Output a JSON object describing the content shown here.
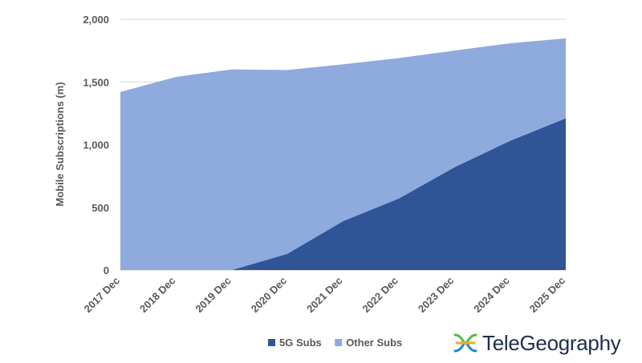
{
  "chart_data": {
    "type": "area",
    "stacked": true,
    "categories": [
      "2017 Dec",
      "2018 Dec",
      "2019 Dec",
      "2020 Dec",
      "2021 Dec",
      "2022 Dec",
      "2023 Dec",
      "2024 Dec",
      "2025 Dec"
    ],
    "series": [
      {
        "name": "5G Subs",
        "color": "#2f5597",
        "values": [
          0,
          0,
          0,
          130,
          390,
          570,
          820,
          1030,
          1210
        ]
      },
      {
        "name": "Other Subs",
        "color": "#8faadc",
        "values": [
          1420,
          1540,
          1600,
          1465,
          1250,
          1120,
          930,
          778,
          637
        ]
      }
    ],
    "title": "",
    "xlabel": "",
    "ylabel": "Mobile Subscriptions (m)",
    "ylim": [
      0,
      2000
    ],
    "yticks": [
      0,
      500,
      1000,
      1500,
      2000
    ],
    "ytick_labels": [
      "0",
      "500",
      "1,000",
      "1,500",
      "2,000"
    ],
    "grid": true,
    "legend_position": "bottom"
  },
  "brand": {
    "logo_text": "TeleGeography",
    "logo_icon": "telegeography-x-icon",
    "colors": [
      "#5ab946",
      "#f5a623",
      "#1e88c8"
    ]
  }
}
